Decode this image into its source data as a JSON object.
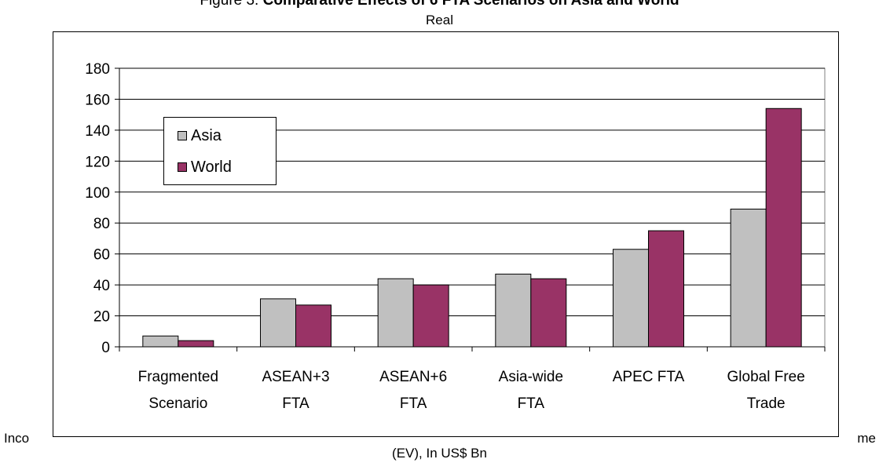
{
  "figure": {
    "title_prefix": "Figure 3. ",
    "title_bold": "Comparative Effects of 6 FTA Scenarios on Asia and World",
    "title_sub": "Real",
    "side_left": "Inco",
    "side_right": "me",
    "bottom_label": "(EV), In US$ Bn"
  },
  "chart_data": {
    "type": "bar",
    "title": "Figure 3. Comparative Effects of 6 FTA Scenarios on Asia and World",
    "categories": [
      [
        "Fragmented",
        "Scenario"
      ],
      [
        "ASEAN+3",
        "FTA"
      ],
      [
        "ASEAN+6",
        "FTA"
      ],
      [
        "Asia-wide",
        "FTA"
      ],
      [
        "APEC FTA"
      ],
      [
        "Global Free",
        "Trade"
      ]
    ],
    "series": [
      {
        "name": "Asia",
        "color": "#c0c0c0",
        "values": [
          7,
          31,
          44,
          47,
          63,
          89
        ]
      },
      {
        "name": "World",
        "color": "#993366",
        "values": [
          4,
          27,
          40,
          44,
          75,
          154
        ]
      }
    ],
    "ylim": [
      0,
      180
    ],
    "yticks": [
      "0",
      "20",
      "40",
      "60",
      "80",
      "100",
      "120",
      "140",
      "160",
      "180"
    ],
    "grid": true,
    "legend_position": "top-left"
  }
}
